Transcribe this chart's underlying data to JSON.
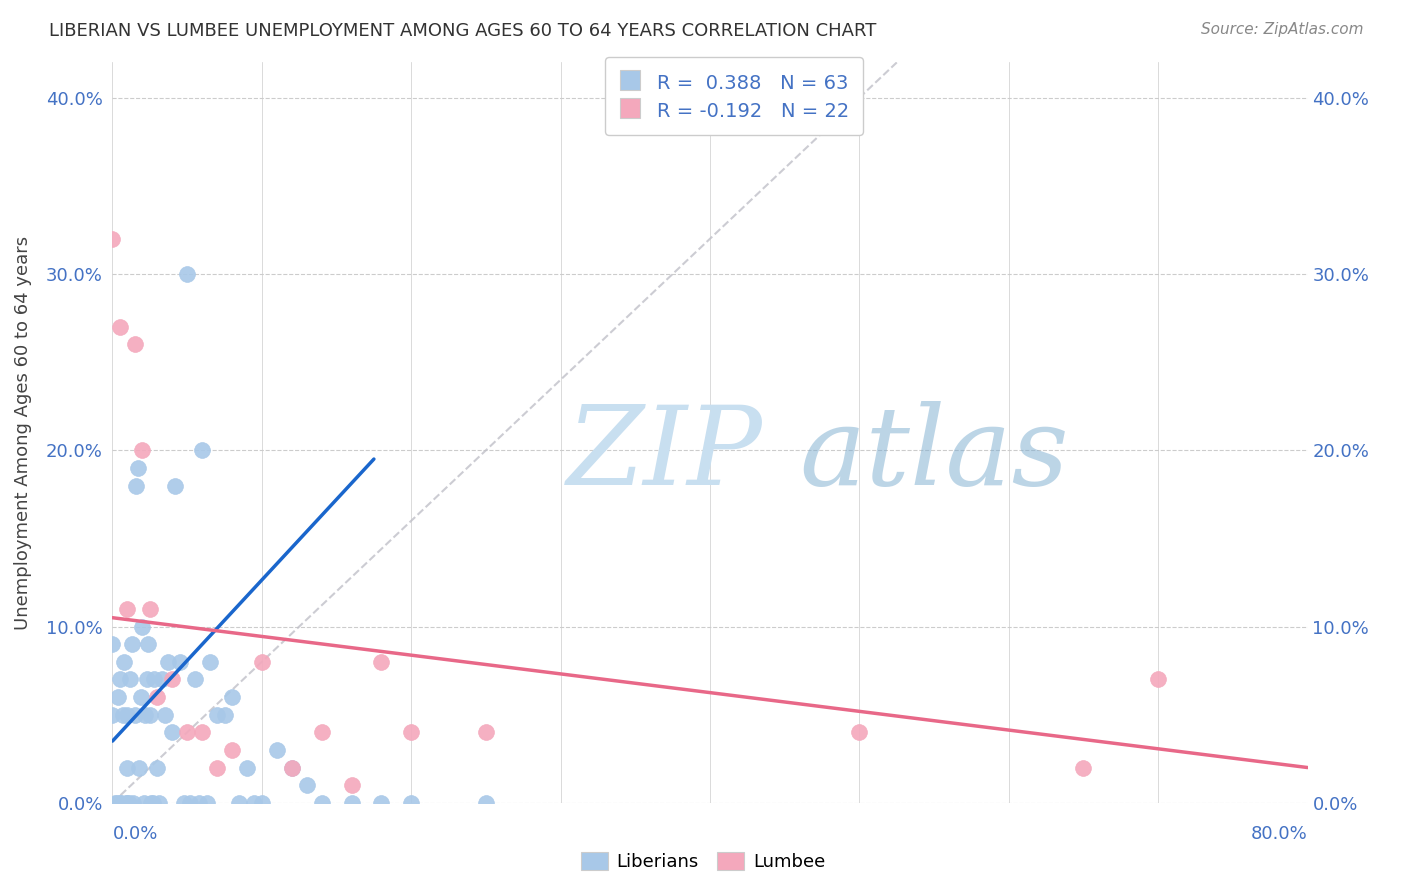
{
  "title": "LIBERIAN VS LUMBEE UNEMPLOYMENT AMONG AGES 60 TO 64 YEARS CORRELATION CHART",
  "source": "Source: ZipAtlas.com",
  "ylabel": "Unemployment Among Ages 60 to 64 years",
  "ytick_labels": [
    "0.0%",
    "10.0%",
    "20.0%",
    "30.0%",
    "40.0%"
  ],
  "ytick_values": [
    0.0,
    0.1,
    0.2,
    0.3,
    0.4
  ],
  "xmin": 0.0,
  "xmax": 0.8,
  "ymin": 0.0,
  "ymax": 0.42,
  "liberian_R": 0.388,
  "liberian_N": 63,
  "lumbee_R": -0.192,
  "lumbee_N": 22,
  "liberian_color": "#a8c8e8",
  "lumbee_color": "#f4a8bc",
  "liberian_line_color": "#1a66cc",
  "lumbee_line_color": "#e86888",
  "trend_line_color": "#c0c0c8",
  "background_color": "#ffffff",
  "liberian_x": [
    0.0,
    0.0,
    0.002,
    0.003,
    0.004,
    0.005,
    0.005,
    0.006,
    0.007,
    0.008,
    0.009,
    0.01,
    0.01,
    0.01,
    0.011,
    0.012,
    0.013,
    0.014,
    0.015,
    0.016,
    0.017,
    0.018,
    0.019,
    0.02,
    0.021,
    0.022,
    0.023,
    0.024,
    0.025,
    0.026,
    0.027,
    0.028,
    0.03,
    0.031,
    0.033,
    0.035,
    0.037,
    0.04,
    0.042,
    0.045,
    0.048,
    0.05,
    0.052,
    0.055,
    0.058,
    0.06,
    0.063,
    0.065,
    0.07,
    0.075,
    0.08,
    0.085,
    0.09,
    0.095,
    0.1,
    0.11,
    0.12,
    0.13,
    0.14,
    0.16,
    0.18,
    0.2,
    0.25
  ],
  "liberian_y": [
    0.05,
    0.09,
    0.0,
    0.0,
    0.06,
    0.0,
    0.07,
    0.0,
    0.05,
    0.08,
    0.0,
    0.0,
    0.02,
    0.05,
    0.0,
    0.07,
    0.09,
    0.0,
    0.05,
    0.18,
    0.19,
    0.02,
    0.06,
    0.1,
    0.0,
    0.05,
    0.07,
    0.09,
    0.05,
    0.0,
    0.0,
    0.07,
    0.02,
    0.0,
    0.07,
    0.05,
    0.08,
    0.04,
    0.18,
    0.08,
    0.0,
    0.3,
    0.0,
    0.07,
    0.0,
    0.2,
    0.0,
    0.08,
    0.05,
    0.05,
    0.06,
    0.0,
    0.02,
    0.0,
    0.0,
    0.03,
    0.02,
    0.01,
    0.0,
    0.0,
    0.0,
    0.0,
    0.0
  ],
  "lumbee_x": [
    0.0,
    0.005,
    0.01,
    0.015,
    0.02,
    0.025,
    0.03,
    0.04,
    0.05,
    0.06,
    0.07,
    0.08,
    0.1,
    0.12,
    0.14,
    0.16,
    0.18,
    0.2,
    0.25,
    0.5,
    0.65,
    0.7
  ],
  "lumbee_y": [
    0.32,
    0.27,
    0.11,
    0.26,
    0.2,
    0.11,
    0.06,
    0.07,
    0.04,
    0.04,
    0.02,
    0.03,
    0.08,
    0.02,
    0.04,
    0.01,
    0.08,
    0.04,
    0.04,
    0.04,
    0.02,
    0.07
  ],
  "liberian_line_x": [
    0.0,
    0.175
  ],
  "liberian_line_y": [
    0.035,
    0.195
  ],
  "lumbee_line_x": [
    0.0,
    0.8
  ],
  "lumbee_line_y": [
    0.105,
    0.02
  ],
  "diag_line_x": [
    0.0,
    0.525
  ],
  "diag_line_y": [
    0.0,
    0.42
  ]
}
